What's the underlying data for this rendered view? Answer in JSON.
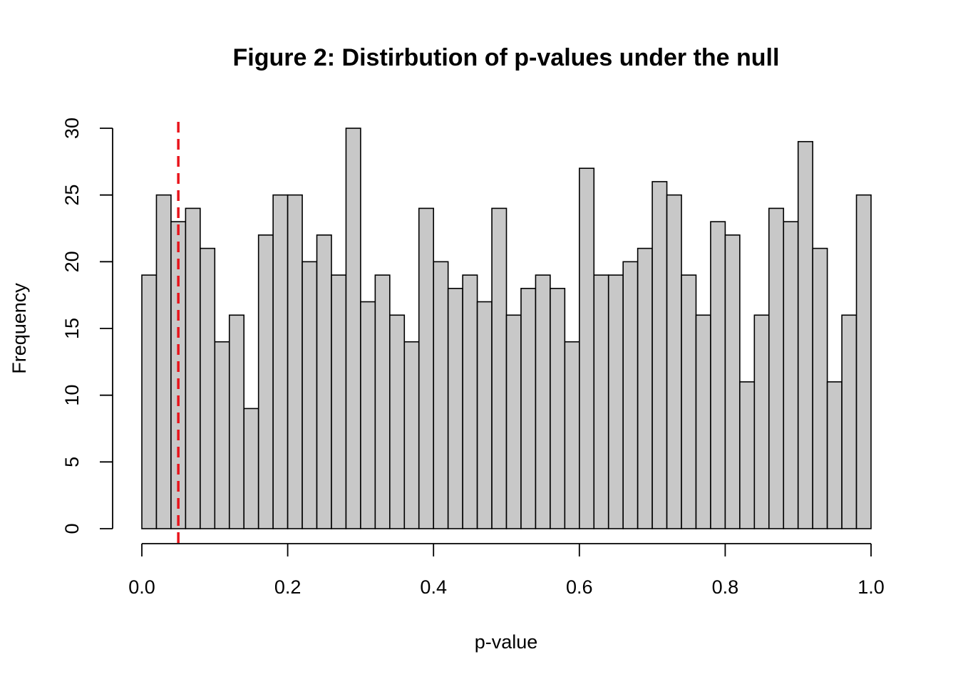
{
  "chart_data": {
    "type": "bar",
    "subtype": "histogram",
    "title": "Figure 2: Distirbution of p-values under the null",
    "xlabel": "p-value",
    "ylabel": "Frequency",
    "xlim": [
      0,
      1
    ],
    "ylim": [
      0,
      30
    ],
    "bin_width": 0.02,
    "bin_start": 0.0,
    "values": [
      19,
      25,
      23,
      24,
      21,
      14,
      16,
      9,
      22,
      25,
      25,
      20,
      22,
      19,
      30,
      17,
      19,
      16,
      14,
      24,
      20,
      18,
      19,
      17,
      24,
      16,
      18,
      19,
      18,
      14,
      27,
      19,
      19,
      20,
      21,
      26,
      25,
      19,
      16,
      23,
      22,
      11,
      16,
      24,
      23,
      29,
      21,
      11,
      16,
      25
    ],
    "x_ticks": [
      "0.0",
      "0.2",
      "0.4",
      "0.6",
      "0.8",
      "1.0"
    ],
    "x_tick_values": [
      0,
      0.2,
      0.4,
      0.6,
      0.8,
      1.0
    ],
    "y_ticks": [
      "0",
      "5",
      "10",
      "15",
      "20",
      "25",
      "30"
    ],
    "y_tick_values": [
      0,
      5,
      10,
      15,
      20,
      25,
      30
    ],
    "reference_line": {
      "x": 0.05,
      "style": "dashed",
      "color": "#e8141c"
    },
    "bar_color": "#c8c8c8",
    "grid": false,
    "legend": "none"
  }
}
